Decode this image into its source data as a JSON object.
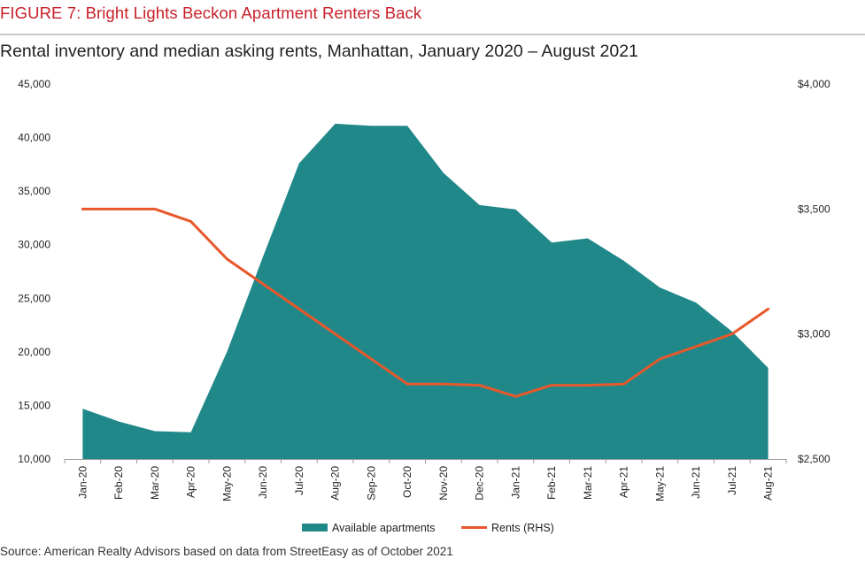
{
  "header": {
    "figure_title": "FIGURE 7: Bright Lights Beckon Apartment Renters Back",
    "subtitle": "Rental inventory and median asking rents, Manhattan, January 2020 – August 2021",
    "source": "Source: American Realty Advisors based on data from StreetEasy as of October 2021"
  },
  "colors": {
    "title": "#c8202a",
    "area": "#21888a",
    "line": "#e8582a"
  },
  "chart_data": {
    "type": "area",
    "title": "Rental inventory and median asking rents, Manhattan, January 2020 – August 2021",
    "categories": [
      "Jan-20",
      "Feb-20",
      "Mar-20",
      "Apr-20",
      "May-20",
      "Jun-20",
      "Jul-20",
      "Aug-20",
      "Sep-20",
      "Oct-20",
      "Nov-20",
      "Dec-20",
      "Jan-21",
      "Feb-21",
      "Mar-21",
      "Apr-21",
      "May-21",
      "Jun-21",
      "Jul-21",
      "Aug-21"
    ],
    "series": [
      {
        "name": "Available apartments",
        "type": "area",
        "axis": "left",
        "values": [
          14700,
          13500,
          12600,
          12500,
          20000,
          28900,
          37600,
          41300,
          41100,
          41100,
          36700,
          33700,
          33300,
          30200,
          30600,
          28500,
          26000,
          24600,
          21900,
          18500
        ]
      },
      {
        "name": "Rents (RHS)",
        "type": "line",
        "axis": "right",
        "values": [
          3500,
          3500,
          3500,
          3450,
          3300,
          3200,
          3100,
          3000,
          2900,
          2800,
          2800,
          2795,
          2750,
          2795,
          2795,
          2800,
          2900,
          2950,
          3000,
          3100
        ]
      }
    ],
    "left_axis": {
      "range": [
        10000,
        45000
      ],
      "ticks": [
        10000,
        15000,
        20000,
        25000,
        30000,
        35000,
        40000,
        45000
      ],
      "tick_labels": [
        "10,000",
        "15,000",
        "20,000",
        "25,000",
        "30,000",
        "35,000",
        "40,000",
        "45,000"
      ]
    },
    "right_axis": {
      "range": [
        2500,
        4000
      ],
      "ticks": [
        2500,
        3000,
        3500,
        4000
      ],
      "tick_labels": [
        "$2,500",
        "$3,000",
        "$3,500",
        "$4,000"
      ]
    },
    "grid": false,
    "legend_position": "bottom"
  }
}
